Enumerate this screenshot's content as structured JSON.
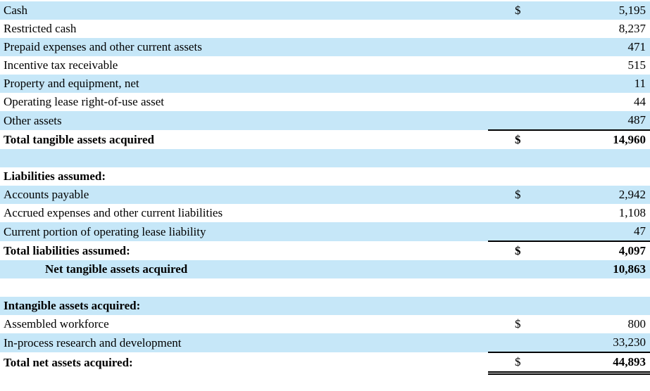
{
  "table": {
    "currency_symbol": "$",
    "colors": {
      "row_highlight": "#c6e7f8",
      "text": "#000000",
      "rule": "#000000"
    },
    "rows": [
      {
        "label": "Cash",
        "dollar": "$",
        "value": "5,195"
      },
      {
        "label": "Restricted cash",
        "dollar": "",
        "value": "8,237"
      },
      {
        "label": "Prepaid expenses and other current assets",
        "dollar": "",
        "value": "471"
      },
      {
        "label": "Incentive tax receivable",
        "dollar": "",
        "value": "515"
      },
      {
        "label": "Property and equipment, net",
        "dollar": "",
        "value": "11"
      },
      {
        "label": "Operating lease right-of-use asset",
        "dollar": "",
        "value": "44"
      },
      {
        "label": "Other assets",
        "dollar": "",
        "value": "487"
      },
      {
        "label": "Total tangible assets acquired",
        "dollar": "$",
        "value": "14,960"
      },
      {
        "label": "",
        "dollar": "",
        "value": ""
      },
      {
        "label": "Liabilities assumed:",
        "dollar": "",
        "value": ""
      },
      {
        "label": "Accounts payable",
        "dollar": "$",
        "value": "2,942"
      },
      {
        "label": "Accrued expenses and other current liabilities",
        "dollar": "",
        "value": "1,108"
      },
      {
        "label": "Current portion of operating lease liability",
        "dollar": "",
        "value": "47"
      },
      {
        "label": "Total liabilities assumed:",
        "dollar": "$",
        "value": "4,097"
      },
      {
        "label": "Net tangible assets acquired",
        "dollar": "",
        "value": "10,863"
      },
      {
        "label": "",
        "dollar": "",
        "value": ""
      },
      {
        "label": "Intangible assets acquired:",
        "dollar": "",
        "value": ""
      },
      {
        "label": "Assembled workforce",
        "dollar": "$",
        "value": "800"
      },
      {
        "label": "In-process research and development",
        "dollar": "",
        "value": "33,230"
      },
      {
        "label": "Total net assets acquired:",
        "dollar": "$",
        "value": "44,893"
      }
    ]
  }
}
